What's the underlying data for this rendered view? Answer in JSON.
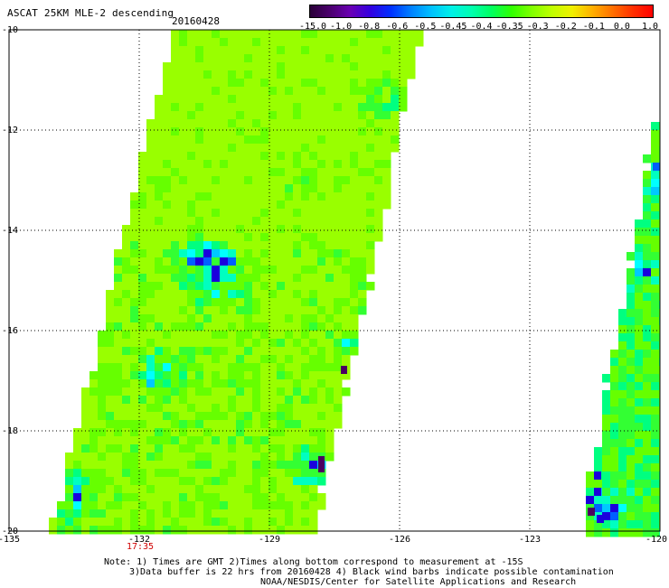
{
  "header": {
    "title": "ASCAT 25KM MLE-2 descending",
    "date": "20160428"
  },
  "colorbar": {
    "colors": [
      "#2a0038",
      "#4b006e",
      "#6a00b4",
      "#3300e0",
      "#0030ff",
      "#0080ff",
      "#00c0ff",
      "#00f0e8",
      "#00ffb0",
      "#00ff60",
      "#30ff00",
      "#80ff00",
      "#c0ff00",
      "#f0f000",
      "#ffb000",
      "#ff7000",
      "#ff3000",
      "#ff0000"
    ],
    "labels": [
      "-15.0",
      "-1.0",
      "-0.8",
      "-0.6",
      "-0.5",
      "-0.45",
      "-0.4",
      "-0.35",
      "-0.3",
      "-0.2",
      "-0.1",
      "0.0",
      "1.0"
    ]
  },
  "axes": {
    "lat_labels": [
      "-10",
      "-12",
      "-14",
      "-16",
      "-18",
      "-20"
    ],
    "lon_labels": [
      "-135",
      "-132",
      "-129",
      "-126",
      "-123",
      "-120"
    ],
    "time_label": "17:35",
    "time_color": "#d00000"
  },
  "notes": {
    "line1": "Note: 1) Times are GMT 2)Times along bottom correspond to measurement at -15S",
    "line2": "3)Data buffer is 22 hrs from 20160428 4) Black wind barbs indicate possible contamination",
    "line3": "NOAA/NESDIS/Center for Satellite Applications and Research"
  },
  "palette": {
    "lime": "#99ff00",
    "green_light": "#66ff00",
    "green": "#33ff33",
    "green_teal": "#00ff80",
    "teal": "#00ffc0",
    "cyan": "#00ffff",
    "sky": "#00c8ff",
    "blue": "#0060ff",
    "deep_blue": "#1a00dd",
    "purple": "#4b0060"
  }
}
